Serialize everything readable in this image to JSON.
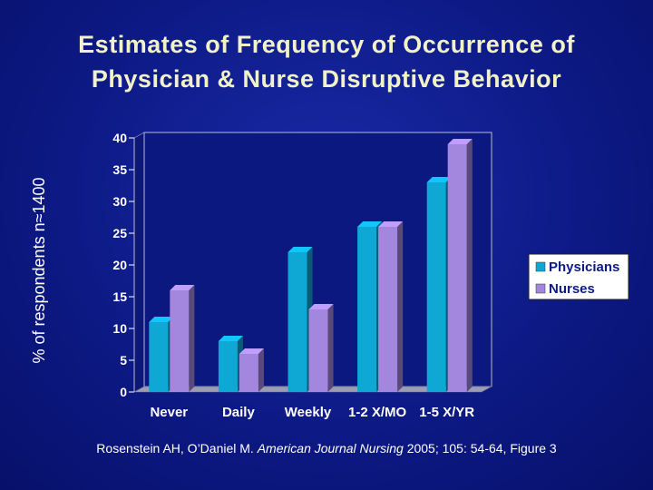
{
  "title": {
    "line1": "Estimates of Frequency of Occurrence of",
    "line2": "Physician & Nurse Disruptive Behavior"
  },
  "citation": {
    "authors": "Rosenstein AH, O’Daniel M.",
    "journal": "American Journal Nursing",
    "details": "2005; 105: 54-64, Figure 3"
  },
  "colors": {
    "physicians": "#0fa7d4",
    "nurses": "#a386de",
    "background": "#0d1a86",
    "title": "#f2f2c8"
  },
  "chart_data": {
    "type": "bar",
    "ylabel": "% of respondents n≈1400",
    "categories": [
      "Never",
      "Daily",
      "Weekly",
      "1-2 X/MO",
      "1-5 X/YR"
    ],
    "series": [
      {
        "name": "Physicians",
        "values": [
          11,
          8,
          22,
          26,
          33
        ]
      },
      {
        "name": "Nurses",
        "values": [
          16,
          6,
          13,
          26,
          39
        ]
      }
    ],
    "ylim": [
      0,
      40
    ],
    "yticks": [
      0,
      5,
      10,
      15,
      20,
      25,
      30,
      35,
      40
    ],
    "legend": "right",
    "grid": false
  }
}
